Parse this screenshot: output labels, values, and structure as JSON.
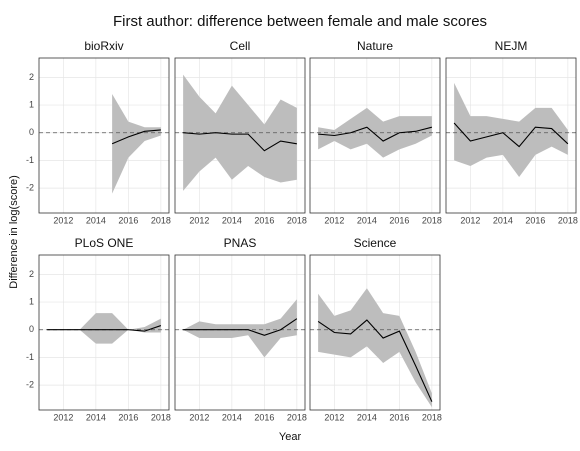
{
  "title": "First author: difference between female and male scores",
  "x_label": "Year",
  "y_label": "Difference in log(score)",
  "hline": 0,
  "chart_data": [
    {
      "type": "line",
      "title": "bioRxiv",
      "x": [
        2015,
        2016,
        2017,
        2018
      ],
      "series": [
        {
          "values": [
            -0.4,
            -0.15,
            0.05,
            0.1
          ],
          "lower": [
            -2.2,
            -0.9,
            -0.3,
            -0.1
          ],
          "upper": [
            1.4,
            0.4,
            0.2,
            0.2
          ],
          "color": "#000000",
          "band_color": "#bdbdbd"
        }
      ],
      "xlim": [
        2010.5,
        2018.5
      ],
      "ylim": [
        -2.9,
        2.7
      ],
      "xticks": [
        2012,
        2014,
        2016,
        2018
      ],
      "yticks": [
        -2,
        -1,
        0,
        1,
        2
      ]
    },
    {
      "type": "line",
      "title": "Cell",
      "x": [
        2011,
        2012,
        2013,
        2014,
        2015,
        2016,
        2017,
        2018
      ],
      "series": [
        {
          "values": [
            0,
            -0.05,
            0,
            -0.05,
            -0.05,
            -0.65,
            -0.3,
            -0.4
          ],
          "lower": [
            -2.1,
            -1.4,
            -0.9,
            -1.7,
            -1.2,
            -1.6,
            -1.8,
            -1.7
          ],
          "upper": [
            2.1,
            1.3,
            0.7,
            1.7,
            1.0,
            0.3,
            1.2,
            0.9
          ],
          "color": "#000000",
          "band_color": "#bdbdbd"
        }
      ],
      "xlim": [
        2010.5,
        2018.5
      ],
      "ylim": [
        -2.9,
        2.7
      ],
      "xticks": [
        2012,
        2014,
        2016,
        2018
      ],
      "yticks": [
        -2,
        -1,
        0,
        1,
        2
      ]
    },
    {
      "type": "line",
      "title": "Nature",
      "x": [
        2011,
        2012,
        2013,
        2014,
        2015,
        2016,
        2017,
        2018
      ],
      "series": [
        {
          "values": [
            -0.05,
            -0.1,
            0,
            0.2,
            -0.3,
            0,
            0.05,
            0.2
          ],
          "lower": [
            -0.6,
            -0.3,
            -0.6,
            -0.4,
            -0.9,
            -0.6,
            -0.4,
            -0.1
          ],
          "upper": [
            0.2,
            0.1,
            0.5,
            0.9,
            0.4,
            0.6,
            0.6,
            0.6
          ],
          "color": "#000000",
          "band_color": "#bdbdbd"
        }
      ],
      "xlim": [
        2010.5,
        2018.5
      ],
      "ylim": [
        -2.9,
        2.7
      ],
      "xticks": [
        2012,
        2014,
        2016,
        2018
      ],
      "yticks": [
        -2,
        -1,
        0,
        1,
        2
      ]
    },
    {
      "type": "line",
      "title": "NEJM",
      "x": [
        2011,
        2012,
        2013,
        2014,
        2015,
        2016,
        2017,
        2018
      ],
      "series": [
        {
          "values": [
            0.35,
            -0.3,
            -0.15,
            0,
            -0.5,
            0.2,
            0.15,
            -0.4
          ],
          "lower": [
            -1,
            -1.2,
            -0.9,
            -0.8,
            -1.6,
            -0.8,
            -0.5,
            -0.8
          ],
          "upper": [
            1.8,
            0.6,
            0.6,
            0.5,
            0.4,
            0.9,
            0.9,
            0.1
          ],
          "color": "#000000",
          "band_color": "#bdbdbd"
        }
      ],
      "xlim": [
        2010.5,
        2018.5
      ],
      "ylim": [
        -2.9,
        2.7
      ],
      "xticks": [
        2012,
        2014,
        2016,
        2018
      ],
      "yticks": [
        -2,
        -1,
        0,
        1,
        2
      ]
    },
    {
      "type": "line",
      "title": "PLoS ONE",
      "x": [
        2011,
        2012,
        2013,
        2014,
        2015,
        2016,
        2017,
        2018
      ],
      "series": [
        {
          "values": [
            0,
            0,
            0,
            0,
            0,
            0,
            -0.05,
            0.15
          ],
          "lower": [
            0,
            0,
            0,
            -0.5,
            -0.5,
            0,
            -0.1,
            -0.1
          ],
          "upper": [
            0,
            0,
            0,
            0.6,
            0.6,
            0,
            0.1,
            0.4
          ],
          "color": "#000000",
          "band_color": "#bdbdbd"
        }
      ],
      "xlim": [
        2010.5,
        2018.5
      ],
      "ylim": [
        -2.9,
        2.7
      ],
      "xticks": [
        2012,
        2014,
        2016,
        2018
      ],
      "yticks": [
        -2,
        -1,
        0,
        1,
        2
      ]
    },
    {
      "type": "line",
      "title": "PNAS",
      "x": [
        2011,
        2012,
        2013,
        2014,
        2015,
        2016,
        2017,
        2018
      ],
      "series": [
        {
          "values": [
            0,
            0,
            0,
            0,
            0,
            -0.2,
            0,
            0.4
          ],
          "lower": [
            0,
            -0.3,
            -0.3,
            -0.3,
            -0.2,
            -1,
            -0.3,
            -0.2
          ],
          "upper": [
            0,
            0.3,
            0.2,
            0.2,
            0.2,
            0.2,
            0.4,
            1.1
          ],
          "color": "#000000",
          "band_color": "#bdbdbd"
        }
      ],
      "xlim": [
        2010.5,
        2018.5
      ],
      "ylim": [
        -2.9,
        2.7
      ],
      "xticks": [
        2012,
        2014,
        2016,
        2018
      ],
      "yticks": [
        -2,
        -1,
        0,
        1,
        2
      ]
    },
    {
      "type": "line",
      "title": "Science",
      "x": [
        2011,
        2012,
        2013,
        2014,
        2015,
        2016,
        2017,
        2018
      ],
      "series": [
        {
          "values": [
            0.3,
            -0.1,
            -0.15,
            0.35,
            -0.3,
            -0.05,
            -1.3,
            -2.6
          ],
          "lower": [
            -0.8,
            -0.9,
            -1.0,
            -0.6,
            -1.2,
            -0.8,
            -1.9,
            -2.8
          ],
          "upper": [
            1.3,
            0.5,
            0.7,
            1.5,
            0.6,
            0.5,
            -0.8,
            -2.3
          ],
          "color": "#000000",
          "band_color": "#bdbdbd"
        }
      ],
      "xlim": [
        2010.5,
        2018.5
      ],
      "ylim": [
        -2.9,
        2.7
      ],
      "xticks": [
        2012,
        2014,
        2016,
        2018
      ],
      "yticks": [
        -2,
        -1,
        0,
        1,
        2
      ]
    }
  ]
}
